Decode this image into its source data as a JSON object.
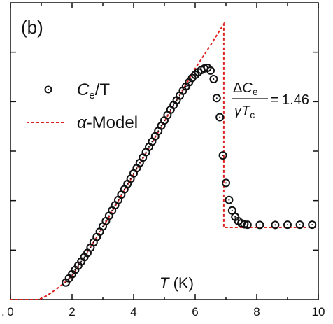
{
  "chart_data": {
    "type": "scatter",
    "panel_label": "(b)",
    "xlabel": {
      "symbol": "T",
      "unit": " (K)"
    },
    "xlim": [
      0,
      10
    ],
    "x_ticks": [
      "0",
      "2",
      "4",
      "6",
      "8",
      "10"
    ],
    "x_tick_left_partial": ".",
    "y_tick_labels_visible": false,
    "legend": {
      "placement": "middle-left",
      "entries": [
        {
          "marker": "open-circle",
          "label_main": "C",
          "label_sub": "e",
          "label_tail": "/T"
        },
        {
          "marker": "red-dashed-line",
          "label_main": "α",
          "label_tail": "-Model"
        }
      ]
    },
    "annotation": {
      "numerator_prefix": "Δ",
      "numerator_main": "C",
      "numerator_sub": "e",
      "denominator_main": "γT",
      "denominator_sub": "c",
      "equals": "=",
      "value": "1.46"
    },
    "colors": {
      "data": "#111111",
      "model": "#dd2222",
      "axis": "#111111"
    },
    "series": [
      {
        "name": "Ce/T",
        "style": "open-circle",
        "points": [
          [
            1.8,
            0.08
          ],
          [
            1.9,
            0.1
          ],
          [
            2.0,
            0.12
          ],
          [
            2.1,
            0.14
          ],
          [
            2.2,
            0.16
          ],
          [
            2.3,
            0.18
          ],
          [
            2.4,
            0.2
          ],
          [
            2.5,
            0.22
          ],
          [
            2.6,
            0.245
          ],
          [
            2.7,
            0.27
          ],
          [
            2.8,
            0.295
          ],
          [
            2.9,
            0.32
          ],
          [
            3.0,
            0.345
          ],
          [
            3.1,
            0.37
          ],
          [
            3.2,
            0.395
          ],
          [
            3.3,
            0.42
          ],
          [
            3.4,
            0.445
          ],
          [
            3.5,
            0.47
          ],
          [
            3.6,
            0.495
          ],
          [
            3.7,
            0.52
          ],
          [
            3.8,
            0.545
          ],
          [
            3.9,
            0.57
          ],
          [
            4.0,
            0.595
          ],
          [
            4.1,
            0.62
          ],
          [
            4.2,
            0.645
          ],
          [
            4.3,
            0.67
          ],
          [
            4.4,
            0.695
          ],
          [
            4.5,
            0.72
          ],
          [
            4.6,
            0.745
          ],
          [
            4.7,
            0.77
          ],
          [
            4.8,
            0.795
          ],
          [
            4.9,
            0.82
          ],
          [
            5.0,
            0.845
          ],
          [
            5.1,
            0.87
          ],
          [
            5.2,
            0.895
          ],
          [
            5.3,
            0.918
          ],
          [
            5.4,
            0.94
          ],
          [
            5.5,
            0.962
          ],
          [
            5.6,
            0.985
          ],
          [
            5.7,
            1.005
          ],
          [
            5.8,
            1.025
          ],
          [
            5.9,
            1.045
          ],
          [
            6.0,
            1.06
          ],
          [
            6.1,
            1.073
          ],
          [
            6.2,
            1.083
          ],
          [
            6.3,
            1.09
          ],
          [
            6.4,
            1.093
          ],
          [
            6.5,
            1.08
          ],
          [
            6.6,
            1.04
          ],
          [
            6.7,
            0.95
          ],
          [
            6.8,
            0.86
          ],
          [
            6.9,
            0.68
          ],
          [
            7.0,
            0.55
          ],
          [
            7.1,
            0.47
          ],
          [
            7.2,
            0.42
          ],
          [
            7.3,
            0.39
          ],
          [
            7.4,
            0.37
          ],
          [
            7.5,
            0.36
          ],
          [
            7.6,
            0.355
          ],
          [
            7.7,
            0.353
          ],
          [
            8.1,
            0.352
          ],
          [
            8.6,
            0.352
          ],
          [
            9.0,
            0.353
          ],
          [
            9.4,
            0.353
          ],
          [
            9.8,
            0.353
          ]
        ]
      },
      {
        "name": "α-Model",
        "style": "dashed-line",
        "points": [
          [
            0,
            0
          ],
          [
            0.5,
            0
          ],
          [
            0.9,
            0.0
          ],
          [
            1.0,
            0.005
          ],
          [
            1.2,
            0.02
          ],
          [
            1.5,
            0.05
          ],
          [
            1.8,
            0.085
          ],
          [
            2.0,
            0.11
          ],
          [
            3.0,
            0.34
          ],
          [
            4.0,
            0.59
          ],
          [
            5.0,
            0.84
          ],
          [
            6.0,
            1.09
          ],
          [
            6.5,
            1.2
          ],
          [
            6.93,
            1.3
          ],
          [
            6.93,
            0.34
          ],
          [
            10.0,
            0.34
          ]
        ]
      }
    ],
    "ylim": [
      0,
      1.4
    ]
  }
}
